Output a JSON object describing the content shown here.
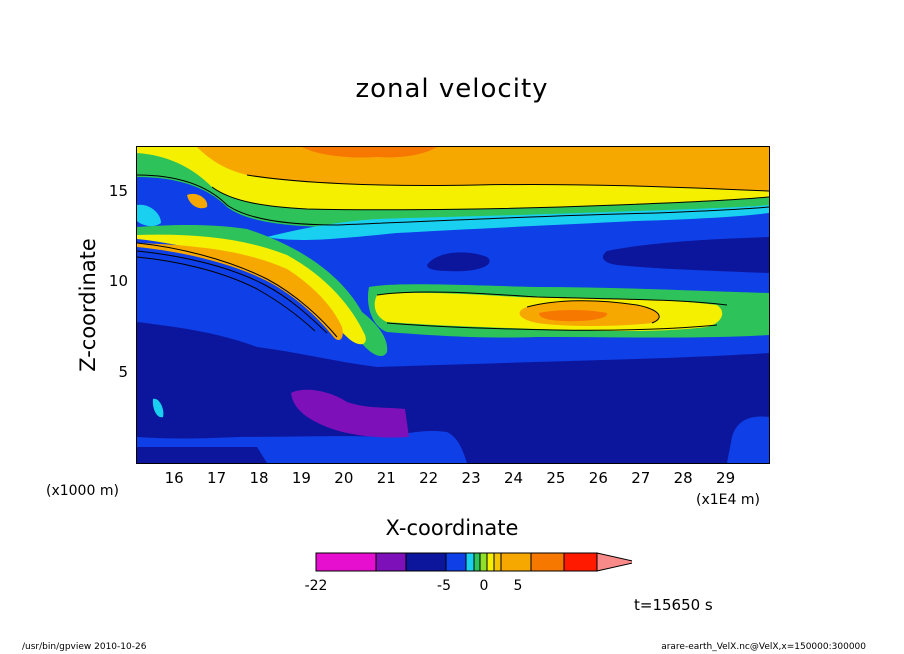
{
  "chart_data": {
    "type": "heatmap",
    "title": "zonal velocity",
    "xlabel": "X-coordinate",
    "ylabel": "Z-coordinate",
    "x_unit": "(x1E4 m)",
    "y_unit": "(x1000 m)",
    "x_ticks": [
      16,
      17,
      18,
      19,
      20,
      21,
      22,
      23,
      24,
      25,
      26,
      27,
      28,
      29
    ],
    "y_ticks": [
      5,
      10,
      15
    ],
    "xlim": [
      15.1,
      30.0
    ],
    "ylim": [
      0,
      17.5
    ],
    "colorbar": {
      "tick_labels": [
        "-22",
        "-5",
        "0",
        "5"
      ],
      "tick_values": [
        -22,
        -5,
        0,
        5
      ],
      "levels": [
        "<-22",
        "-22..-15",
        "-15..-10",
        "-10..-5",
        "-5..-2",
        "-2..-1",
        "-1..0",
        "0..1",
        "1..2",
        "2..5",
        "5..10",
        "10..15",
        ">15"
      ],
      "colors": [
        "#e60fd0",
        "#7d10b8",
        "#0c169c",
        "#0f3fe6",
        "#1ad0f0",
        "#2ec35a",
        "#8fe02a",
        "#f4f000",
        "#f6c400",
        "#f7a800",
        "#f77800",
        "#ff1a00",
        "#f98a8a"
      ]
    },
    "regions": [
      {
        "id": "low-blue",
        "level": "-10..-5",
        "desc": "bottom layer z<8"
      },
      {
        "id": "violet-core",
        "level": "-22..-15",
        "x": [
          19.0,
          21.8
        ],
        "z": [
          1.5,
          4.0
        ]
      },
      {
        "id": "orange-jet-left",
        "level": "5..10",
        "x": [
          15.1,
          19.6
        ],
        "z": [
          7.0,
          12.0
        ]
      },
      {
        "id": "orange-jet-right",
        "level": "5..10",
        "x": [
          24.7,
          26.2
        ],
        "z": [
          7.8,
          8.6
        ]
      },
      {
        "id": "upper-orange",
        "level": "5..10",
        "x": [
          19.5,
          30.0
        ],
        "z": [
          14.5,
          17.5
        ]
      }
    ]
  },
  "time_label": "t=15650 s",
  "footer": {
    "left": "/usr/bin/gpview   2010-10-26",
    "right": "arare-earth_VelX.nc@VelX,x=150000:300000"
  },
  "colors": {
    "background": "#ffffff",
    "axis": "#000000"
  }
}
